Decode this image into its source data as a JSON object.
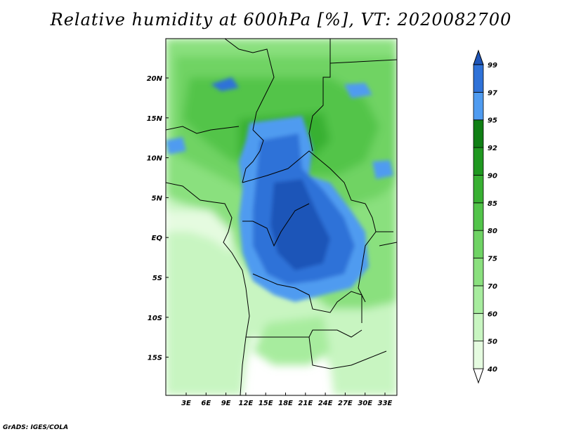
{
  "title": "Relative humidity at 600hPa [%], VT: 2020082700",
  "credit": "GrADS: IGES/COLA",
  "map": {
    "lat_labels": [
      "20N",
      "15N",
      "10N",
      "5N",
      "EQ",
      "5S",
      "10S",
      "15S"
    ],
    "lon_labels": [
      "3E",
      "6E",
      "9E",
      "12E",
      "15E",
      "18E",
      "21E",
      "24E",
      "27E",
      "30E",
      "33E"
    ]
  },
  "colorbar": {
    "labels": [
      "40",
      "50",
      "60",
      "70",
      "75",
      "80",
      "85",
      "90",
      "92",
      "95",
      "97",
      "99"
    ],
    "colors": [
      "#ffffff",
      "#e5fbe0",
      "#c8f5c1",
      "#a7ec9e",
      "#8ae07e",
      "#6fd364",
      "#52c44a",
      "#38b032",
      "#1f9820",
      "#0f7f14",
      "#4f9bf0",
      "#2f72d8",
      "#1e55b8"
    ]
  }
}
